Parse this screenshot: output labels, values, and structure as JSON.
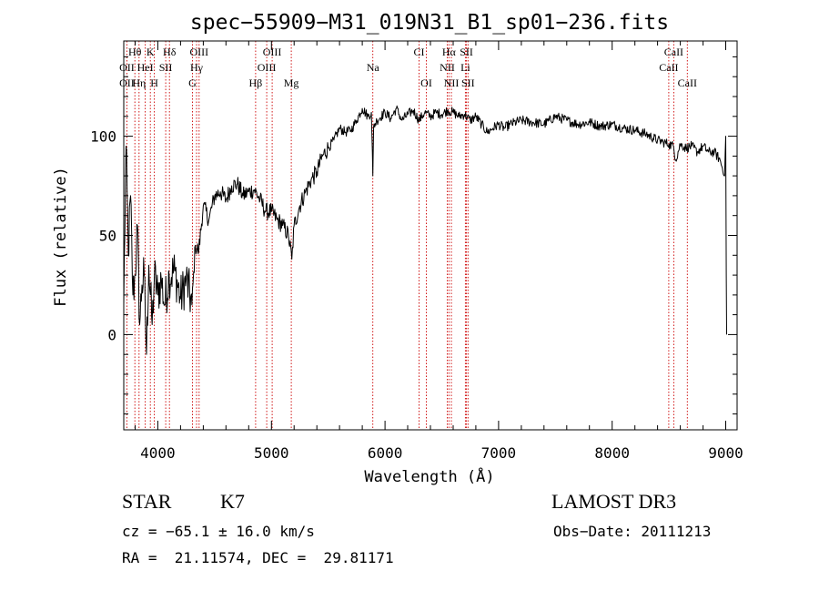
{
  "chart_data": {
    "type": "line",
    "title": "spec−55909−M31_019N31_B1_sp01−236.fits",
    "xlabel": "Wavelength (Å)",
    "ylabel": "Flux (relative)",
    "xlim": [
      3700,
      9100
    ],
    "ylim": [
      -48,
      148
    ],
    "x_ticks": [
      4000,
      5000,
      6000,
      7000,
      8000,
      9000
    ],
    "y_ticks": [
      0,
      50,
      100
    ],
    "x_minor_step": 200,
    "y_minor_step": 10,
    "series": [
      {
        "name": "flux",
        "color": "#000000",
        "x": [
          3700,
          3720,
          3740,
          3760,
          3780,
          3800,
          3820,
          3840,
          3860,
          3880,
          3900,
          3920,
          3950,
          3970,
          4000,
          4030,
          4060,
          4100,
          4150,
          4200,
          4250,
          4300,
          4330,
          4360,
          4400,
          4450,
          4500,
          4550,
          4600,
          4650,
          4700,
          4750,
          4800,
          4850,
          4900,
          4950,
          5000,
          5050,
          5100,
          5150,
          5180,
          5200,
          5250,
          5300,
          5350,
          5400,
          5450,
          5500,
          5550,
          5600,
          5650,
          5700,
          5750,
          5800,
          5850,
          5880,
          5893,
          5900,
          5930,
          6000,
          6050,
          6100,
          6150,
          6200,
          6250,
          6300,
          6350,
          6400,
          6450,
          6500,
          6550,
          6600,
          6650,
          6700,
          6750,
          6800,
          6850,
          6900,
          6950,
          7000,
          7050,
          7100,
          7200,
          7300,
          7400,
          7500,
          7600,
          7700,
          7800,
          7900,
          8000,
          8100,
          8200,
          8300,
          8400,
          8450,
          8500,
          8540,
          8560,
          8600,
          8650,
          8700,
          8750,
          8800,
          8850,
          8900,
          8950,
          8990,
          9000,
          9005,
          9008
        ],
        "y": [
          15,
          95,
          40,
          70,
          20,
          30,
          55,
          5,
          25,
          30,
          -10,
          35,
          5,
          30,
          20,
          28,
          15,
          30,
          32,
          18,
          28,
          15,
          45,
          42,
          65,
          58,
          70,
          72,
          68,
          75,
          76,
          70,
          72,
          73,
          68,
          62,
          62,
          58,
          55,
          50,
          38,
          55,
          65,
          72,
          78,
          82,
          90,
          94,
          98,
          104,
          102,
          103,
          108,
          114,
          110,
          112,
          80,
          105,
          108,
          112,
          109,
          114,
          108,
          111,
          113,
          108,
          112,
          110,
          112,
          111,
          113,
          112,
          110,
          111,
          108,
          110,
          106,
          102,
          104,
          106,
          104,
          106,
          108,
          107,
          106,
          110,
          108,
          106,
          107,
          105,
          106,
          104,
          103,
          101,
          98,
          97,
          96,
          95,
          88,
          96,
          94,
          95,
          92,
          95,
          92,
          92,
          88,
          80,
          100,
          30,
          0
        ]
      }
    ],
    "line_labels": [
      {
        "text": "Hθ",
        "wl": 3798,
        "row": 1
      },
      {
        "text": "K",
        "wl": 3934,
        "row": 1
      },
      {
        "text": "Hδ",
        "wl": 4102,
        "row": 1
      },
      {
        "text": "OIII",
        "wl": 4363,
        "row": 1
      },
      {
        "text": "OIII",
        "wl": 5007,
        "row": 1
      },
      {
        "text": "CI",
        "wl": 6300,
        "row": 1
      },
      {
        "text": "Hα",
        "wl": 6563,
        "row": 1
      },
      {
        "text": "SII",
        "wl": 6717,
        "row": 1
      },
      {
        "text": "CaII",
        "wl": 8542,
        "row": 1
      },
      {
        "text": "OII",
        "wl": 3727,
        "row": 2
      },
      {
        "text": "HeI",
        "wl": 3889,
        "row": 2
      },
      {
        "text": "SII",
        "wl": 4069,
        "row": 2
      },
      {
        "text": "Hγ",
        "wl": 4341,
        "row": 2
      },
      {
        "text": "OIII",
        "wl": 4959,
        "row": 2
      },
      {
        "text": "Na",
        "wl": 5893,
        "row": 2
      },
      {
        "text": "NII",
        "wl": 6548,
        "row": 2
      },
      {
        "text": "Li",
        "wl": 6708,
        "row": 2
      },
      {
        "text": "CaII",
        "wl": 8498,
        "row": 2
      },
      {
        "text": "OII",
        "wl": 3727,
        "row": 3
      },
      {
        "text": "Hη",
        "wl": 3835,
        "row": 3
      },
      {
        "text": "H",
        "wl": 3969,
        "row": 3
      },
      {
        "text": "G",
        "wl": 4305,
        "row": 3
      },
      {
        "text": "Hβ",
        "wl": 4861,
        "row": 3
      },
      {
        "text": "Mg",
        "wl": 5175,
        "row": 3
      },
      {
        "text": "OI",
        "wl": 6364,
        "row": 3
      },
      {
        "text": "NII",
        "wl": 6584,
        "row": 3
      },
      {
        "text": "SII",
        "wl": 6731,
        "row": 3
      },
      {
        "text": "CaII",
        "wl": 8662,
        "row": 3
      }
    ],
    "marker_lines": [
      3727,
      3798,
      3835,
      3889,
      3934,
      3969,
      4069,
      4102,
      4305,
      4341,
      4363,
      4861,
      4959,
      5007,
      5175,
      5893,
      6300,
      6364,
      6548,
      6563,
      6584,
      6708,
      6717,
      6731,
      8498,
      8542,
      8662
    ]
  },
  "info": {
    "object_class": "STAR",
    "subclass": "K7",
    "survey": "LAMOST DR3",
    "cz": "cz = −65.1 ± 16.0 km/s",
    "obs_date": "Obs−Date: 20111213",
    "coords": "RA =  21.11574, DEC =  29.81171"
  },
  "colors": {
    "line": "#000000",
    "marker": "#cc0000",
    "axes": "#000000",
    "background": "#ffffff"
  }
}
